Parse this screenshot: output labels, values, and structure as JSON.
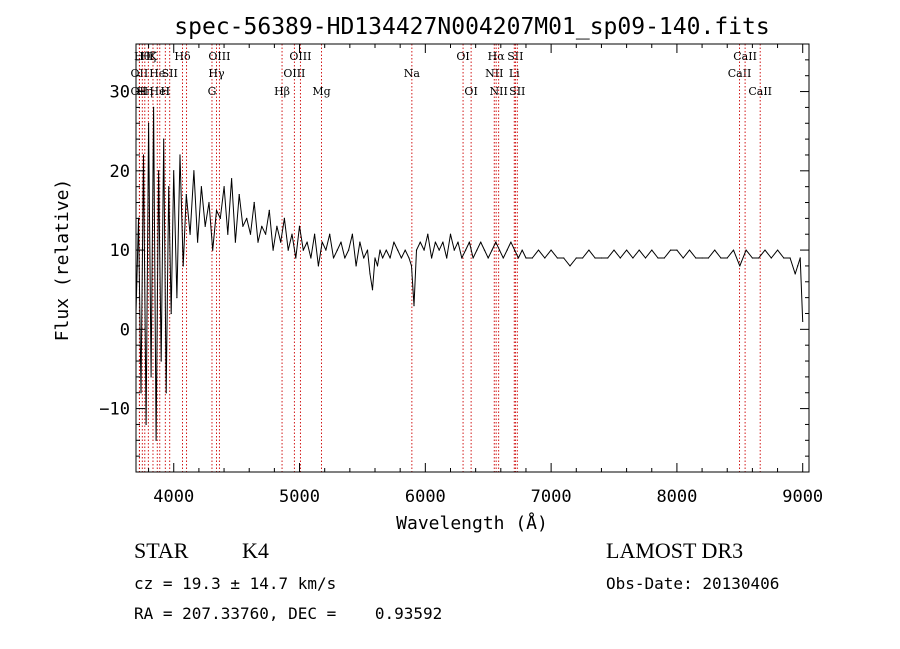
{
  "chart_data": {
    "type": "line",
    "title": "spec-56389-HD134427N004207M01_sp09-140.fits",
    "xlabel": "Wavelength (Å)",
    "ylabel": "Flux (relative)",
    "xlim": [
      3700,
      9050
    ],
    "ylim": [
      -18,
      36
    ],
    "xticks": [
      4000,
      5000,
      6000,
      7000,
      8000,
      9000
    ],
    "xtick_labels": [
      "4000",
      "5000",
      "6000",
      "7000",
      "8000",
      "9000"
    ],
    "yticks": [
      -10,
      0,
      10,
      20,
      30
    ],
    "ytick_labels": [
      "−10",
      "0",
      "10",
      "20",
      "30"
    ],
    "line_color": "#000000",
    "marker_color": "#cc0000",
    "series": [
      {
        "name": "flux",
        "x": [
          3700,
          3720,
          3740,
          3760,
          3780,
          3800,
          3820,
          3840,
          3860,
          3880,
          3900,
          3920,
          3940,
          3960,
          3980,
          4000,
          4025,
          4050,
          4075,
          4100,
          4130,
          4160,
          4190,
          4220,
          4250,
          4280,
          4310,
          4340,
          4370,
          4400,
          4430,
          4460,
          4490,
          4520,
          4550,
          4580,
          4610,
          4640,
          4670,
          4700,
          4730,
          4760,
          4790,
          4820,
          4850,
          4880,
          4910,
          4940,
          4970,
          5000,
          5030,
          5060,
          5090,
          5120,
          5150,
          5180,
          5210,
          5240,
          5270,
          5300,
          5330,
          5360,
          5390,
          5420,
          5450,
          5480,
          5510,
          5540,
          5560,
          5580,
          5600,
          5620,
          5640,
          5660,
          5690,
          5720,
          5750,
          5780,
          5810,
          5840,
          5870,
          5890,
          5910,
          5930,
          5960,
          5990,
          6020,
          6050,
          6080,
          6110,
          6140,
          6170,
          6200,
          6230,
          6260,
          6290,
          6320,
          6350,
          6380,
          6410,
          6440,
          6470,
          6500,
          6530,
          6560,
          6590,
          6620,
          6650,
          6680,
          6710,
          6740,
          6770,
          6800,
          6850,
          6900,
          6950,
          7000,
          7050,
          7100,
          7150,
          7200,
          7250,
          7300,
          7350,
          7400,
          7450,
          7500,
          7550,
          7600,
          7650,
          7700,
          7750,
          7800,
          7850,
          7900,
          7950,
          8000,
          8050,
          8100,
          8150,
          8200,
          8250,
          8300,
          8350,
          8400,
          8450,
          8500,
          8550,
          8600,
          8650,
          8700,
          8750,
          8800,
          8850,
          8900,
          8940,
          8960,
          8980,
          9000
        ],
        "values": [
          2,
          14,
          -8,
          22,
          -12,
          26,
          -6,
          28,
          -14,
          20,
          -4,
          24,
          -8,
          18,
          2,
          20,
          4,
          22,
          8,
          17,
          12,
          20,
          11,
          18,
          13,
          16,
          10,
          15,
          14,
          18,
          12,
          19,
          11,
          17,
          13,
          14,
          12,
          16,
          11,
          13,
          12,
          15,
          10,
          13,
          11,
          14,
          10,
          12,
          9,
          13,
          10,
          11,
          9,
          12,
          8,
          11,
          10,
          12,
          9,
          10,
          11,
          9,
          10,
          12,
          8,
          11,
          9,
          10,
          7,
          5,
          9,
          8,
          10,
          9,
          10,
          9,
          11,
          10,
          9,
          10,
          9,
          8,
          3,
          10,
          11,
          10,
          12,
          9,
          11,
          10,
          11,
          9,
          12,
          10,
          11,
          9,
          10,
          11,
          9,
          10,
          11,
          10,
          9,
          10,
          11,
          10,
          9,
          10,
          11,
          10,
          9,
          10,
          9,
          9,
          10,
          9,
          10,
          9,
          9,
          8,
          9,
          9,
          10,
          9,
          9,
          9,
          10,
          9,
          10,
          9,
          10,
          9,
          10,
          9,
          9,
          10,
          10,
          9,
          10,
          9,
          9,
          9,
          10,
          9,
          9,
          10,
          8,
          10,
          9,
          9,
          10,
          9,
          10,
          9,
          9,
          7,
          8,
          9,
          1
        ]
      }
    ],
    "line_markers": [
      {
        "wl": 3727,
        "label": "OII",
        "row": 2
      },
      {
        "wl": 3727,
        "label": "OII",
        "row": 3
      },
      {
        "wl": 3750,
        "label": "Hθ",
        "row": 1
      },
      {
        "wl": 3770,
        "label": "Hη",
        "row": 3
      },
      {
        "wl": 3798,
        "label": "Hζ",
        "row": 1
      },
      {
        "wl": 3835,
        "label": "K",
        "row": 1
      },
      {
        "wl": 3869,
        "label": "He",
        "row": 2
      },
      {
        "wl": 3889,
        "label": "HeI",
        "row": 3
      },
      {
        "wl": 3933,
        "label": "H",
        "row": 3
      },
      {
        "wl": 3968,
        "label": "SII",
        "row": 2
      },
      {
        "wl": 4070,
        "label": "Hδ",
        "row": 1
      },
      {
        "wl": 4102,
        "label": "",
        "row": 0
      },
      {
        "wl": 4304,
        "label": "G",
        "row": 3
      },
      {
        "wl": 4340,
        "label": "Hγ",
        "row": 2
      },
      {
        "wl": 4363,
        "label": "OIII",
        "row": 1
      },
      {
        "wl": 4861,
        "label": "Hβ",
        "row": 3
      },
      {
        "wl": 4959,
        "label": "OIII",
        "row": 2
      },
      {
        "wl": 5007,
        "label": "OIII",
        "row": 1
      },
      {
        "wl": 5175,
        "label": "Mg",
        "row": 3
      },
      {
        "wl": 5893,
        "label": "Na",
        "row": 2
      },
      {
        "wl": 6300,
        "label": "OI",
        "row": 1
      },
      {
        "wl": 6364,
        "label": "OI",
        "row": 3
      },
      {
        "wl": 6548,
        "label": "NII",
        "row": 2
      },
      {
        "wl": 6563,
        "label": "Hα",
        "row": 1
      },
      {
        "wl": 6583,
        "label": "NII",
        "row": 3
      },
      {
        "wl": 6707,
        "label": "Li",
        "row": 2
      },
      {
        "wl": 6716,
        "label": "SII",
        "row": 1
      },
      {
        "wl": 6731,
        "label": "SII",
        "row": 3
      },
      {
        "wl": 8498,
        "label": "CaII",
        "row": 2
      },
      {
        "wl": 8542,
        "label": "CaII",
        "row": 1
      },
      {
        "wl": 8662,
        "label": "CaII",
        "row": 3
      }
    ]
  },
  "info": {
    "class_label": "STAR",
    "subclass": "K4",
    "survey": "LAMOST DR3",
    "cz_text": "cz = 19.3 ± 14.7 km/s",
    "obs_date": "Obs-Date: 20130406",
    "radec_text": "RA = 207.33760, DEC =    0.93592"
  }
}
